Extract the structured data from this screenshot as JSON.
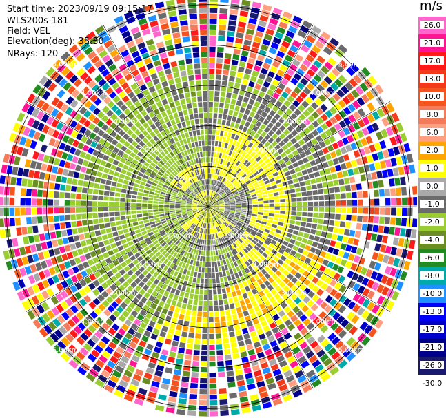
{
  "header": {
    "start_time": "Start time: 2023/09/19 09:15:17",
    "instrument": "WLS200s-181",
    "field": "Field: VEL",
    "elevation": "Elevation(deg): 35.30",
    "nrays": "NRays: 120"
  },
  "chart_data": {
    "type": "heatmap",
    "subtype": "polar PPI velocity scan",
    "field": "VEL",
    "units": "m/s",
    "n_rays": 120,
    "elevation_deg": 35.3,
    "range_rings_km": [
      1.0,
      2.0,
      3.0,
      4.0,
      5.0
    ],
    "max_range_km": 5.2,
    "ring_labels": [
      "1.00km",
      "2.00km",
      "3.00km",
      "4.00km",
      "5.00km"
    ],
    "colorbar": {
      "label": "m/s",
      "ticks": [
        "26.0",
        "21.0",
        "17.0",
        "13.0",
        "10.0",
        "8.0",
        "6.0",
        "2.0",
        "1.0",
        "0.0",
        "-1.0",
        "-2.0",
        "-4.0",
        "-6.0",
        "-8.0",
        "-10.0",
        "-13.0",
        "-17.0",
        "-21.0",
        "-26.0",
        "-30.0"
      ],
      "colors": [
        "#ff66cc",
        "#ff1493",
        "#ff1a1a",
        "#f23a1a",
        "#f5541e",
        "#f47a5a",
        "#ff9f7f",
        "#ffa500",
        "#ffff00",
        "#a9a9a9",
        "#6b6b6b",
        "#9acd32",
        "#6b8e23",
        "#228b22",
        "#00aaaa",
        "#1e90ff",
        "#0000ff",
        "#0000cd",
        "#00008b",
        "#191970"
      ]
    }
  }
}
